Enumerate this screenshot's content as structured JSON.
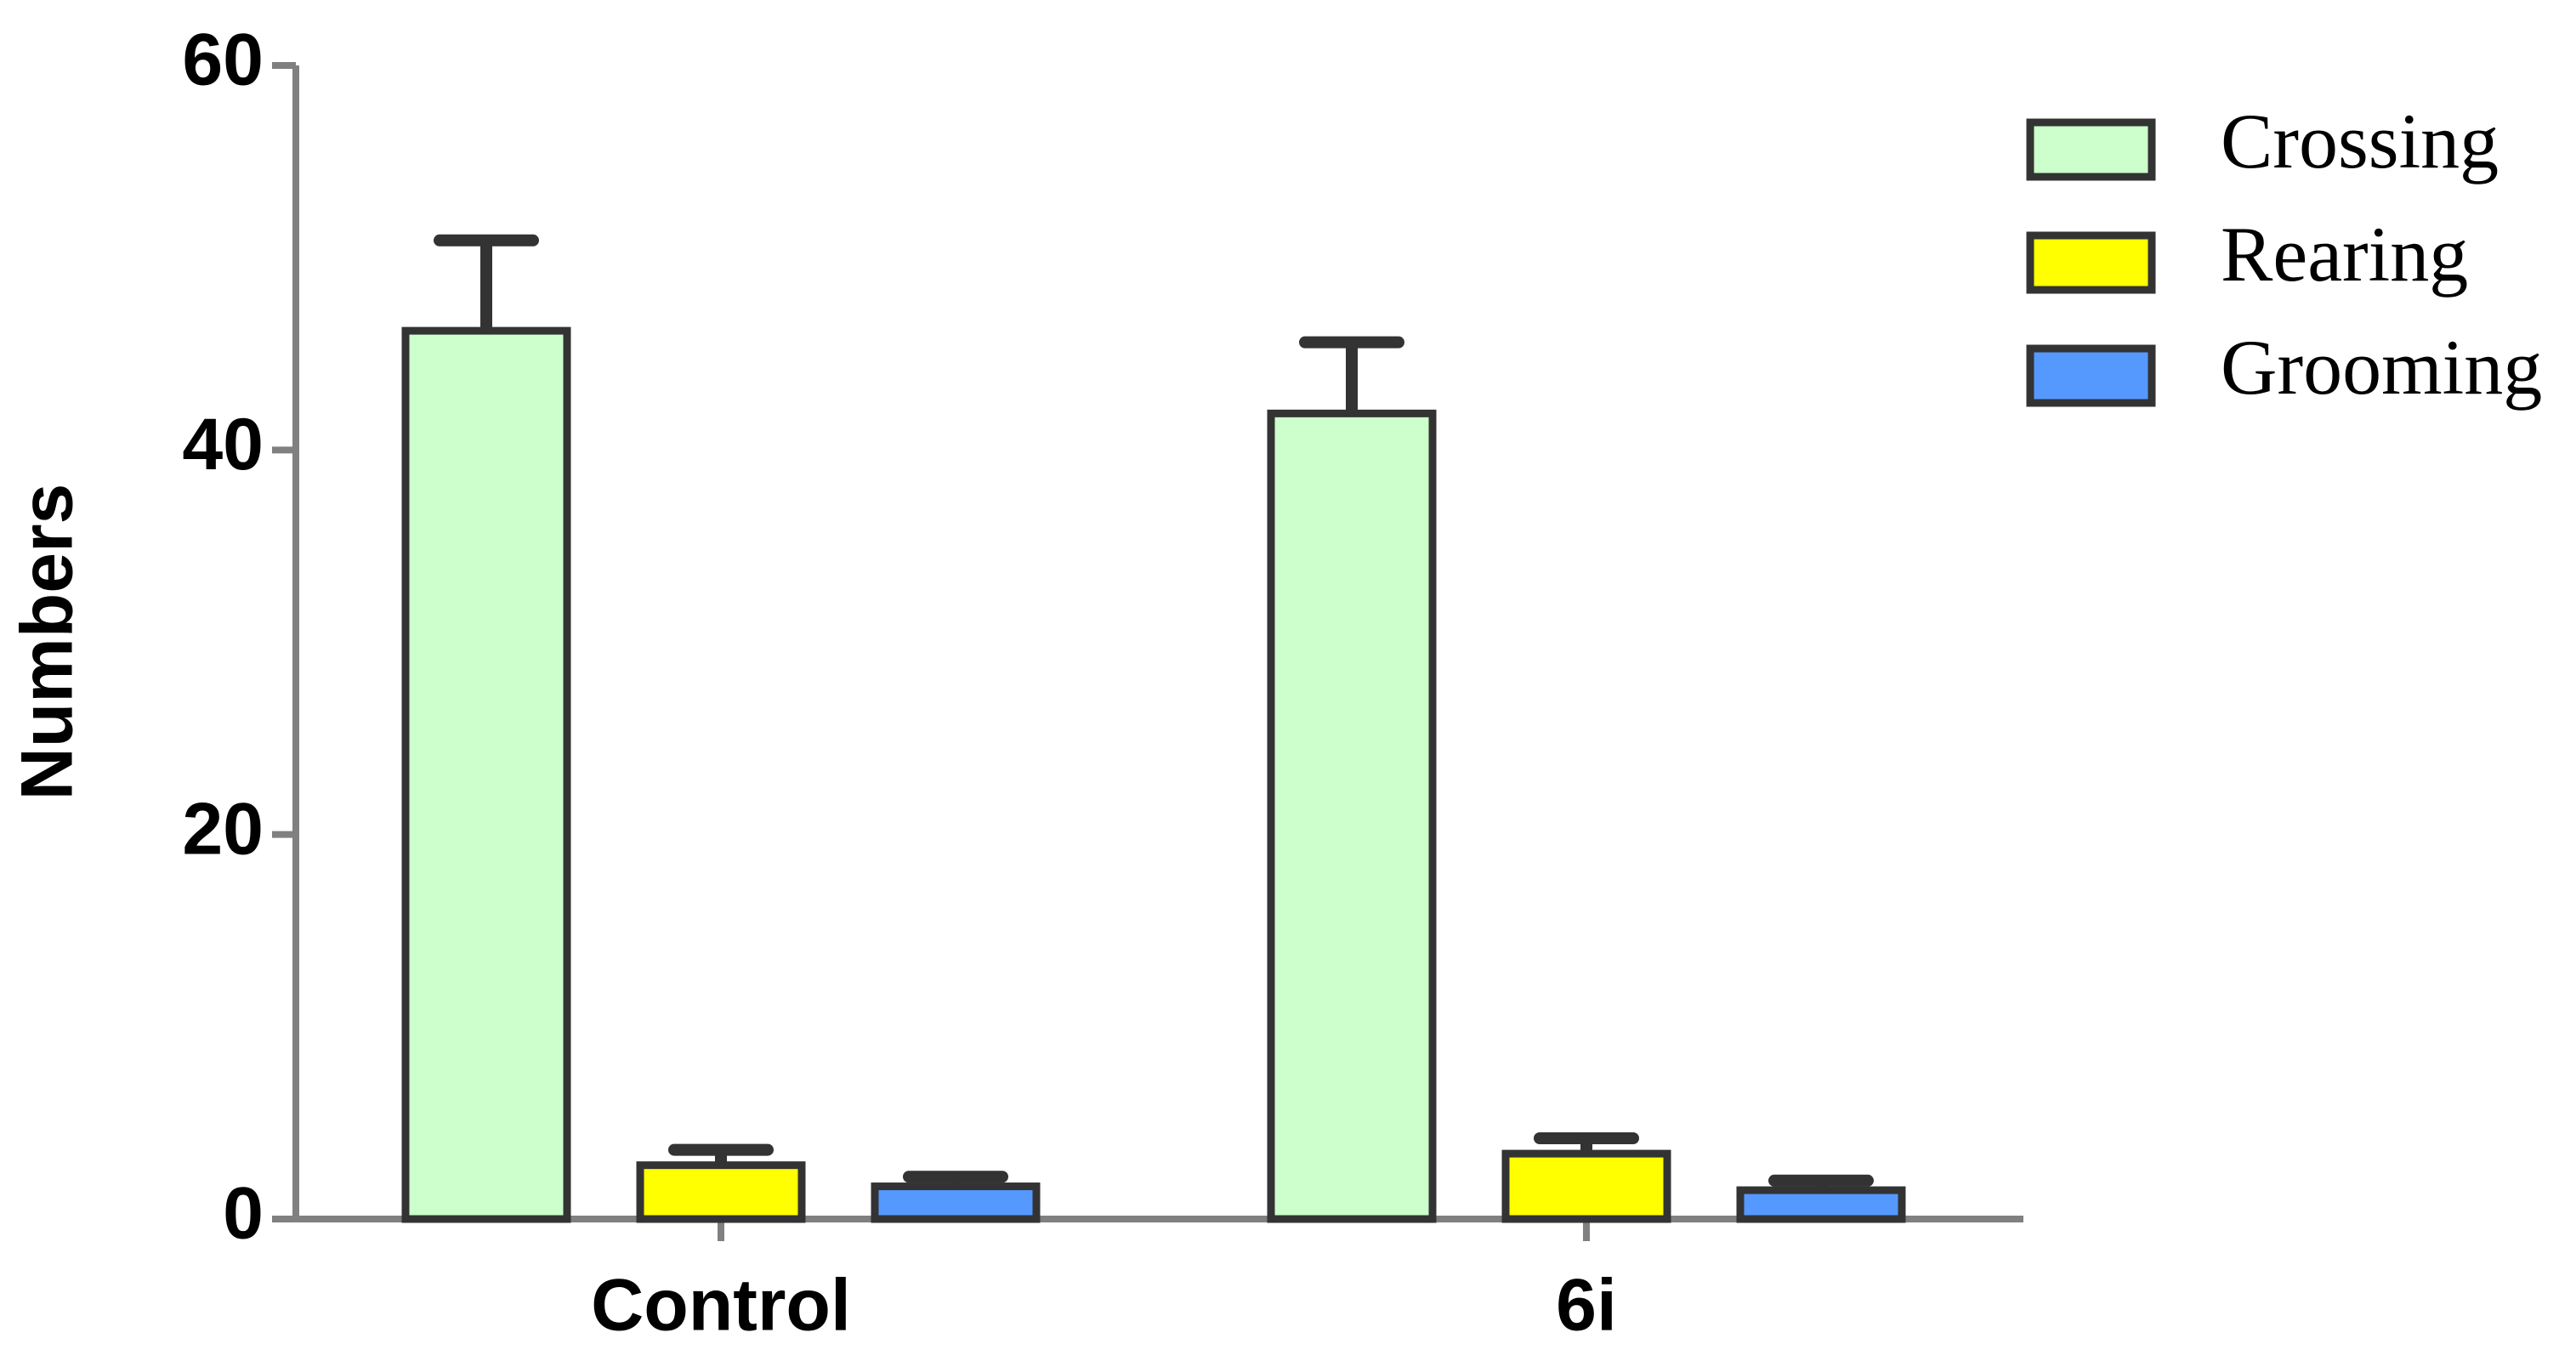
{
  "chart_data": {
    "type": "bar",
    "y_label": "Numbers",
    "categories": [
      "Control",
      "6i"
    ],
    "series": [
      {
        "name": "Crossing",
        "color": "#ccffcc",
        "values": [
          46.2,
          41.9
        ],
        "errors": [
          4.7,
          3.7
        ]
      },
      {
        "name": "Rearing",
        "color": "#ffff00",
        "values": [
          2.8,
          3.4
        ],
        "errors": [
          0.8,
          0.8
        ]
      },
      {
        "name": "Grooming",
        "color": "#5599ff",
        "values": [
          1.7,
          1.5
        ],
        "errors": [
          0.5,
          0.5
        ]
      }
    ],
    "ylim": [
      0,
      60
    ],
    "yticks": [
      0,
      20,
      40,
      60
    ],
    "legend": "upper right"
  }
}
